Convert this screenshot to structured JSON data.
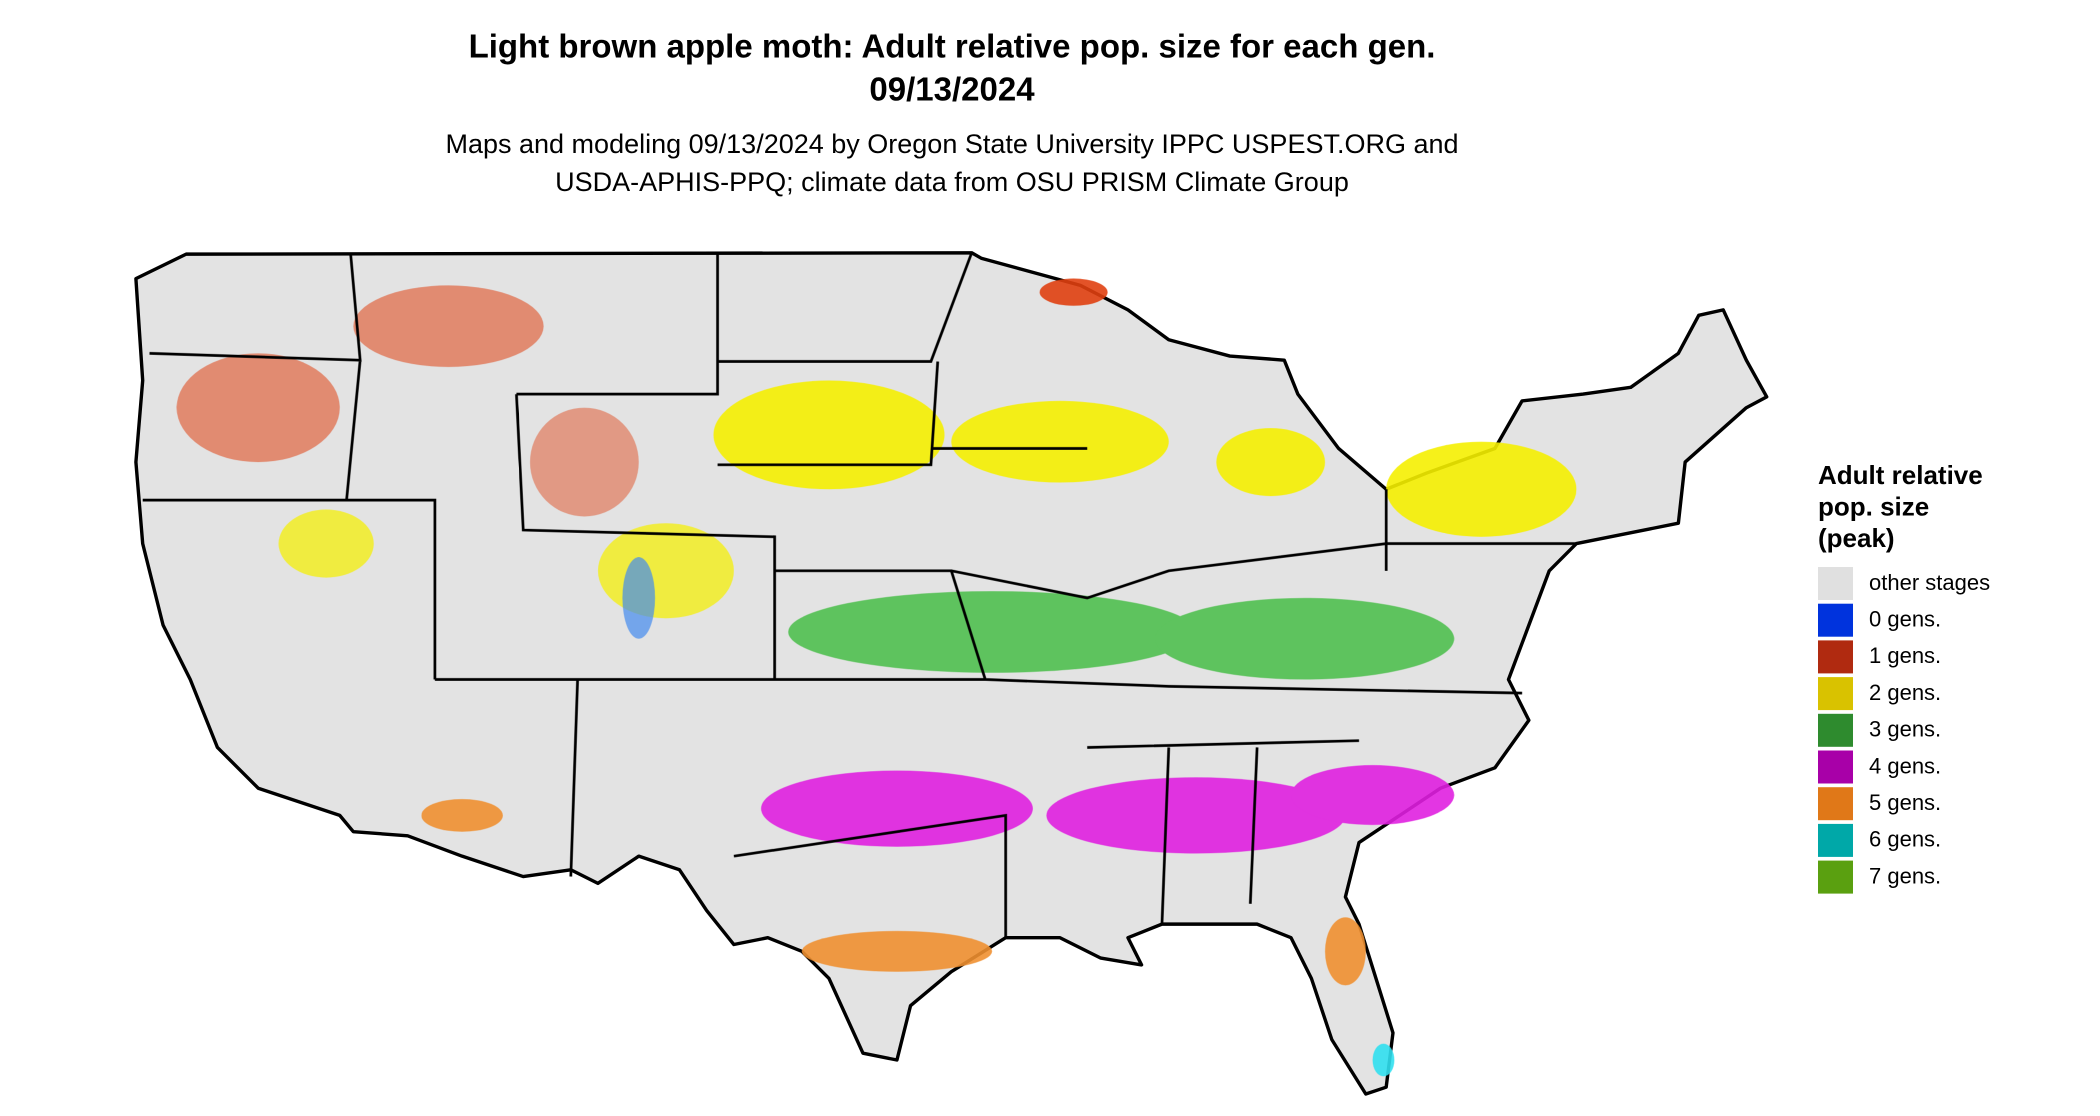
{
  "header": {
    "title": "Light brown apple moth: Adult relative pop. size for each gen.",
    "date": "09/13/2024",
    "subtitle": [
      "Maps and modeling 09/13/2024 by Oregon State University IPPC USPEST.ORG and",
      "USDA-APHIS-PPQ; climate data from OSU PRISM Climate Group"
    ]
  },
  "legend": {
    "title": [
      "Adult relative",
      "pop. size",
      "(peak)"
    ],
    "items": [
      {
        "label": "other stages",
        "color": "#e0e0e0"
      },
      {
        "label": "0 gens.",
        "color": "#0033dd"
      },
      {
        "label": "1 gens.",
        "color": "#b02a10"
      },
      {
        "label": "2 gens.",
        "color": "#d9c200"
      },
      {
        "label": "3 gens.",
        "color": "#2e8b2e"
      },
      {
        "label": "4 gens.",
        "color": "#a800a8"
      },
      {
        "label": "5 gens.",
        "color": "#e07818"
      },
      {
        "label": "6 gens.",
        "color": "#00a8a8"
      },
      {
        "label": "7 gens.",
        "color": "#5aa010"
      }
    ]
  }
}
